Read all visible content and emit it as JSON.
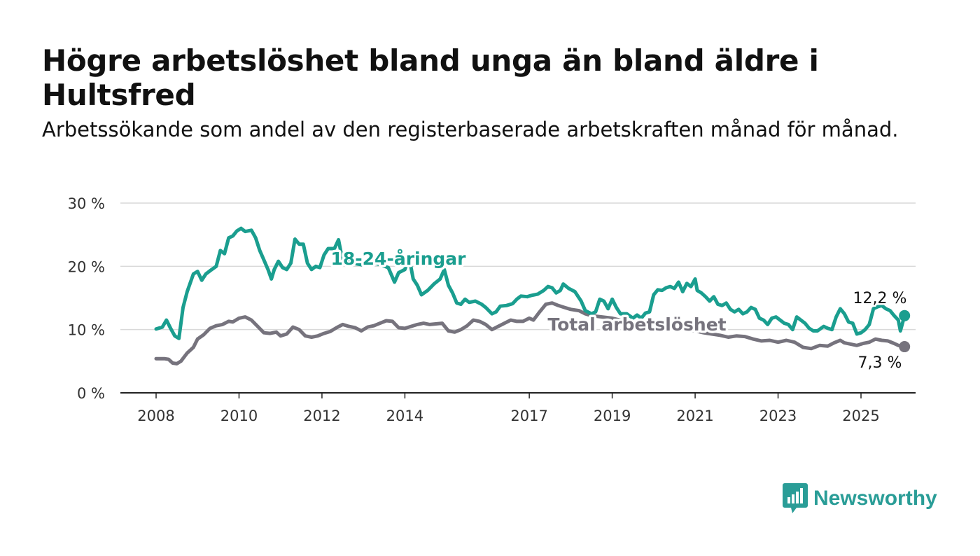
{
  "title": "Högre arbetslöshet bland unga än bland äldre i Hultsfred",
  "subtitle": "Arbetssökande som andel av den registerbaserade arbetskraften månad för månad.",
  "brand": {
    "name": "Newsworthy",
    "color": "#2a9d97",
    "icon": "bar-chart-speech-bubble-icon"
  },
  "chart_data": {
    "type": "line",
    "ylim": [
      0,
      30
    ],
    "xlim": [
      2008,
      2026.3
    ],
    "y_ticks": [
      {
        "value": 0,
        "label": "0 %"
      },
      {
        "value": 10,
        "label": "10 %"
      },
      {
        "value": 20,
        "label": "20 %"
      },
      {
        "value": 30,
        "label": "30 %"
      }
    ],
    "x_ticks": [
      {
        "value": 2008,
        "label": "2008"
      },
      {
        "value": 2010,
        "label": "2010"
      },
      {
        "value": 2012,
        "label": "2012"
      },
      {
        "value": 2014,
        "label": "2014"
      },
      {
        "value": 2017,
        "label": "2017"
      },
      {
        "value": 2019,
        "label": "2019"
      },
      {
        "value": 2021,
        "label": "2021"
      },
      {
        "value": 2023,
        "label": "2023"
      },
      {
        "value": 2025,
        "label": "2025"
      }
    ],
    "grid": true,
    "series": [
      {
        "name": "18-24-åringar",
        "color": "#1a9e8f",
        "end_label": "12,2 %",
        "points": [
          [
            2008.0,
            10.1
          ],
          [
            2008.15,
            10.4
          ],
          [
            2008.25,
            11.5
          ],
          [
            2008.35,
            10.2
          ],
          [
            2008.45,
            9.0
          ],
          [
            2008.55,
            8.6
          ],
          [
            2008.65,
            13.5
          ],
          [
            2008.75,
            16.0
          ],
          [
            2008.9,
            18.8
          ],
          [
            2009.0,
            19.2
          ],
          [
            2009.1,
            17.8
          ],
          [
            2009.2,
            18.8
          ],
          [
            2009.3,
            19.3
          ],
          [
            2009.45,
            20.0
          ],
          [
            2009.55,
            22.5
          ],
          [
            2009.65,
            22.0
          ],
          [
            2009.75,
            24.5
          ],
          [
            2009.85,
            24.8
          ],
          [
            2009.95,
            25.6
          ],
          [
            2010.05,
            26.0
          ],
          [
            2010.15,
            25.5
          ],
          [
            2010.3,
            25.7
          ],
          [
            2010.4,
            24.5
          ],
          [
            2010.5,
            22.5
          ],
          [
            2010.6,
            21.0
          ],
          [
            2010.7,
            19.5
          ],
          [
            2010.78,
            18.0
          ],
          [
            2010.85,
            19.5
          ],
          [
            2010.95,
            20.8
          ],
          [
            2011.05,
            19.8
          ],
          [
            2011.15,
            19.5
          ],
          [
            2011.25,
            20.5
          ],
          [
            2011.35,
            24.3
          ],
          [
            2011.45,
            23.5
          ],
          [
            2011.55,
            23.5
          ],
          [
            2011.65,
            20.5
          ],
          [
            2011.75,
            19.5
          ],
          [
            2011.85,
            20.0
          ],
          [
            2011.95,
            19.8
          ],
          [
            2012.05,
            21.8
          ],
          [
            2012.15,
            22.8
          ],
          [
            2012.3,
            22.8
          ],
          [
            2012.4,
            24.2
          ],
          [
            2012.5,
            20.8
          ],
          [
            2012.6,
            21.2
          ],
          [
            2012.75,
            20.5
          ],
          [
            2013.0,
            20.2
          ],
          [
            2013.3,
            20.5
          ],
          [
            2013.6,
            19.8
          ],
          [
            2013.75,
            17.5
          ],
          [
            2013.85,
            19.0
          ],
          [
            2014.0,
            19.5
          ],
          [
            2014.1,
            21.5
          ],
          [
            2014.2,
            18.0
          ],
          [
            2014.3,
            17.0
          ],
          [
            2014.4,
            15.5
          ],
          [
            2014.55,
            16.2
          ],
          [
            2014.7,
            17.2
          ],
          [
            2014.85,
            18.0
          ],
          [
            2014.95,
            19.5
          ],
          [
            2015.05,
            17.0
          ],
          [
            2015.15,
            15.8
          ],
          [
            2015.25,
            14.2
          ],
          [
            2015.35,
            14.0
          ],
          [
            2015.45,
            14.8
          ],
          [
            2015.55,
            14.3
          ],
          [
            2015.7,
            14.5
          ],
          [
            2015.85,
            14.0
          ],
          [
            2015.95,
            13.5
          ],
          [
            2016.1,
            12.5
          ],
          [
            2016.2,
            12.8
          ],
          [
            2016.3,
            13.7
          ],
          [
            2016.45,
            13.8
          ],
          [
            2016.6,
            14.1
          ],
          [
            2016.7,
            14.8
          ],
          [
            2016.8,
            15.3
          ],
          [
            2016.95,
            15.2
          ],
          [
            2017.05,
            15.4
          ],
          [
            2017.2,
            15.6
          ],
          [
            2017.35,
            16.2
          ],
          [
            2017.45,
            16.8
          ],
          [
            2017.55,
            16.6
          ],
          [
            2017.65,
            15.8
          ],
          [
            2017.75,
            16.2
          ],
          [
            2017.82,
            17.2
          ],
          [
            2017.95,
            16.5
          ],
          [
            2018.1,
            16.0
          ],
          [
            2018.25,
            14.5
          ],
          [
            2018.35,
            13.0
          ],
          [
            2018.5,
            12.5
          ],
          [
            2018.6,
            12.8
          ],
          [
            2018.7,
            14.8
          ],
          [
            2018.8,
            14.5
          ],
          [
            2018.9,
            13.3
          ],
          [
            2019.0,
            14.8
          ],
          [
            2019.1,
            13.5
          ],
          [
            2019.2,
            12.5
          ],
          [
            2019.35,
            12.5
          ],
          [
            2019.5,
            11.8
          ],
          [
            2019.6,
            12.3
          ],
          [
            2019.7,
            11.8
          ],
          [
            2019.8,
            12.6
          ],
          [
            2019.9,
            12.8
          ],
          [
            2020.0,
            15.5
          ],
          [
            2020.1,
            16.3
          ],
          [
            2020.2,
            16.2
          ],
          [
            2020.3,
            16.6
          ],
          [
            2020.4,
            16.8
          ],
          [
            2020.5,
            16.5
          ],
          [
            2020.6,
            17.5
          ],
          [
            2020.7,
            16.0
          ],
          [
            2020.8,
            17.3
          ],
          [
            2020.9,
            16.8
          ],
          [
            2021.0,
            18.0
          ],
          [
            2021.05,
            16.2
          ],
          [
            2021.15,
            15.8
          ],
          [
            2021.25,
            15.2
          ],
          [
            2021.35,
            14.5
          ],
          [
            2021.45,
            15.2
          ],
          [
            2021.55,
            14.0
          ],
          [
            2021.65,
            13.8
          ],
          [
            2021.75,
            14.2
          ],
          [
            2021.85,
            13.2
          ],
          [
            2021.95,
            12.8
          ],
          [
            2022.05,
            13.2
          ],
          [
            2022.15,
            12.5
          ],
          [
            2022.25,
            12.8
          ],
          [
            2022.35,
            13.5
          ],
          [
            2022.45,
            13.2
          ],
          [
            2022.55,
            11.8
          ],
          [
            2022.65,
            11.5
          ],
          [
            2022.75,
            10.8
          ],
          [
            2022.85,
            11.8
          ],
          [
            2022.95,
            12.0
          ],
          [
            2023.05,
            11.5
          ],
          [
            2023.15,
            11.0
          ],
          [
            2023.25,
            10.8
          ],
          [
            2023.35,
            10.0
          ],
          [
            2023.45,
            12.0
          ],
          [
            2023.55,
            11.5
          ],
          [
            2023.65,
            11.0
          ],
          [
            2023.75,
            10.2
          ],
          [
            2023.85,
            9.8
          ],
          [
            2023.95,
            9.8
          ],
          [
            2024.1,
            10.5
          ],
          [
            2024.2,
            10.2
          ],
          [
            2024.3,
            10.0
          ],
          [
            2024.4,
            12.0
          ],
          [
            2024.5,
            13.3
          ],
          [
            2024.6,
            12.5
          ],
          [
            2024.7,
            11.2
          ],
          [
            2024.8,
            11.0
          ],
          [
            2024.9,
            9.3
          ],
          [
            2025.0,
            9.5
          ],
          [
            2025.1,
            10.0
          ],
          [
            2025.2,
            10.8
          ],
          [
            2025.3,
            13.3
          ],
          [
            2025.4,
            13.6
          ],
          [
            2025.5,
            13.8
          ],
          [
            2025.6,
            13.3
          ],
          [
            2025.7,
            13.0
          ],
          [
            2025.8,
            12.2
          ],
          [
            2025.9,
            11.5
          ],
          [
            2025.95,
            9.8
          ],
          [
            2026.05,
            12.2
          ]
        ]
      },
      {
        "name": "Total arbetslöshet",
        "color": "#76737d",
        "end_label": "7,3 %",
        "points": [
          [
            2008.0,
            5.4
          ],
          [
            2008.2,
            5.4
          ],
          [
            2008.3,
            5.3
          ],
          [
            2008.4,
            4.7
          ],
          [
            2008.5,
            4.6
          ],
          [
            2008.6,
            5.0
          ],
          [
            2008.75,
            6.3
          ],
          [
            2008.9,
            7.2
          ],
          [
            2009.0,
            8.5
          ],
          [
            2009.15,
            9.2
          ],
          [
            2009.3,
            10.2
          ],
          [
            2009.45,
            10.6
          ],
          [
            2009.6,
            10.8
          ],
          [
            2009.75,
            11.3
          ],
          [
            2009.85,
            11.2
          ],
          [
            2010.0,
            11.8
          ],
          [
            2010.15,
            12.0
          ],
          [
            2010.3,
            11.5
          ],
          [
            2010.45,
            10.5
          ],
          [
            2010.6,
            9.5
          ],
          [
            2010.75,
            9.4
          ],
          [
            2010.9,
            9.6
          ],
          [
            2011.0,
            9.0
          ],
          [
            2011.15,
            9.3
          ],
          [
            2011.3,
            10.4
          ],
          [
            2011.45,
            10.0
          ],
          [
            2011.6,
            9.0
          ],
          [
            2011.75,
            8.8
          ],
          [
            2011.9,
            9.0
          ],
          [
            2012.05,
            9.4
          ],
          [
            2012.2,
            9.7
          ],
          [
            2012.35,
            10.3
          ],
          [
            2012.5,
            10.8
          ],
          [
            2012.65,
            10.5
          ],
          [
            2012.8,
            10.3
          ],
          [
            2012.95,
            9.8
          ],
          [
            2013.1,
            10.4
          ],
          [
            2013.25,
            10.6
          ],
          [
            2013.4,
            11.0
          ],
          [
            2013.55,
            11.4
          ],
          [
            2013.7,
            11.3
          ],
          [
            2013.85,
            10.3
          ],
          [
            2014.0,
            10.2
          ],
          [
            2014.15,
            10.5
          ],
          [
            2014.3,
            10.8
          ],
          [
            2014.45,
            11.0
          ],
          [
            2014.6,
            10.8
          ],
          [
            2014.75,
            10.9
          ],
          [
            2014.9,
            11.0
          ],
          [
            2015.05,
            9.8
          ],
          [
            2015.2,
            9.6
          ],
          [
            2015.35,
            10.0
          ],
          [
            2015.5,
            10.6
          ],
          [
            2015.65,
            11.5
          ],
          [
            2015.8,
            11.3
          ],
          [
            2015.95,
            10.8
          ],
          [
            2016.1,
            10.0
          ],
          [
            2016.25,
            10.5
          ],
          [
            2016.4,
            11.0
          ],
          [
            2016.55,
            11.5
          ],
          [
            2016.7,
            11.3
          ],
          [
            2016.85,
            11.3
          ],
          [
            2017.0,
            11.8
          ],
          [
            2017.1,
            11.5
          ],
          [
            2017.25,
            12.8
          ],
          [
            2017.4,
            14.0
          ],
          [
            2017.55,
            14.2
          ],
          [
            2017.7,
            13.8
          ],
          [
            2017.85,
            13.5
          ],
          [
            2018.0,
            13.2
          ],
          [
            2018.2,
            13.0
          ],
          [
            2018.35,
            12.5
          ],
          [
            2018.5,
            12.2
          ],
          [
            2019.0,
            11.8
          ],
          [
            2019.5,
            11.0
          ],
          [
            2020.0,
            10.5
          ],
          [
            2020.5,
            10.2
          ],
          [
            2021.0,
            9.8
          ],
          [
            2021.2,
            9.5
          ],
          [
            2021.4,
            9.3
          ],
          [
            2021.6,
            9.1
          ],
          [
            2021.8,
            8.8
          ],
          [
            2022.0,
            9.0
          ],
          [
            2022.2,
            8.9
          ],
          [
            2022.4,
            8.5
          ],
          [
            2022.6,
            8.2
          ],
          [
            2022.8,
            8.3
          ],
          [
            2023.0,
            8.0
          ],
          [
            2023.2,
            8.3
          ],
          [
            2023.4,
            8.0
          ],
          [
            2023.6,
            7.2
          ],
          [
            2023.8,
            7.0
          ],
          [
            2024.0,
            7.5
          ],
          [
            2024.2,
            7.4
          ],
          [
            2024.35,
            7.9
          ],
          [
            2024.5,
            8.3
          ],
          [
            2024.6,
            7.9
          ],
          [
            2024.75,
            7.7
          ],
          [
            2024.9,
            7.5
          ],
          [
            2025.05,
            7.8
          ],
          [
            2025.2,
            8.0
          ],
          [
            2025.35,
            8.5
          ],
          [
            2025.5,
            8.3
          ],
          [
            2025.65,
            8.2
          ],
          [
            2025.8,
            7.8
          ],
          [
            2025.9,
            7.5
          ],
          [
            2026.05,
            7.3
          ]
        ]
      }
    ]
  }
}
